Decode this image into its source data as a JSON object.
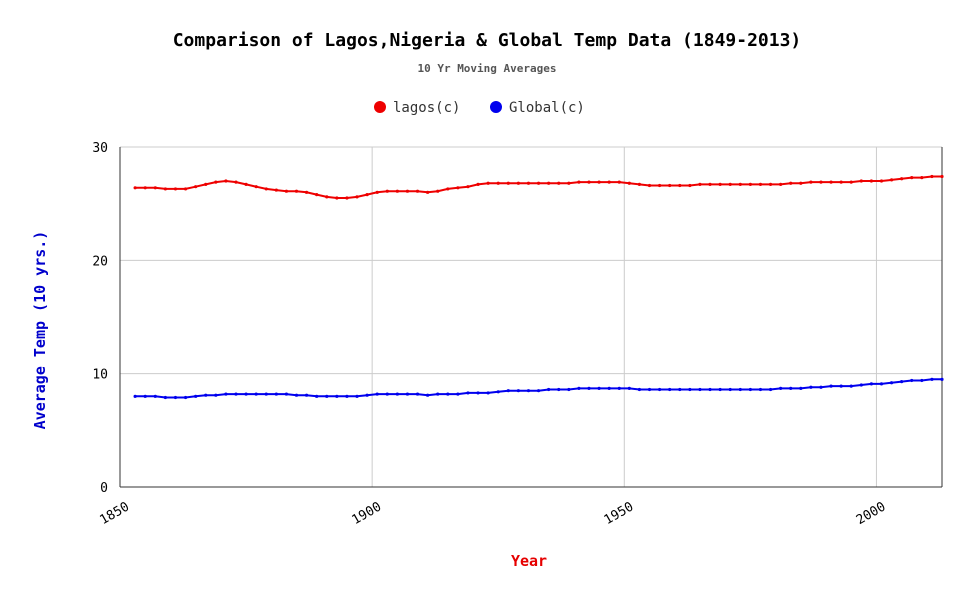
{
  "chart_data": {
    "type": "line",
    "title": "Comparison of Lagos,Nigeria & Global Temp Data (1849-2013)",
    "subtitle": "10 Yr Moving Averages",
    "xlabel": "Year",
    "ylabel": "Average Temp (10 yrs.)",
    "xlim": [
      1850,
      2013
    ],
    "ylim": [
      0,
      30
    ],
    "xticks": [
      "1850",
      "1900",
      "1950",
      "2000"
    ],
    "yticks": [
      "0",
      "10",
      "20",
      "30"
    ],
    "grid": true,
    "legend_position": "top-center",
    "xlabel_color": "#e60000",
    "ylabel_color": "#0000cc",
    "x": [
      1853,
      1855,
      1857,
      1859,
      1861,
      1863,
      1865,
      1867,
      1869,
      1871,
      1873,
      1875,
      1877,
      1879,
      1881,
      1883,
      1885,
      1887,
      1889,
      1891,
      1893,
      1895,
      1897,
      1899,
      1901,
      1903,
      1905,
      1907,
      1909,
      1911,
      1913,
      1915,
      1917,
      1919,
      1921,
      1923,
      1925,
      1927,
      1929,
      1931,
      1933,
      1935,
      1937,
      1939,
      1941,
      1943,
      1945,
      1947,
      1949,
      1951,
      1953,
      1955,
      1957,
      1959,
      1961,
      1963,
      1965,
      1967,
      1969,
      1971,
      1973,
      1975,
      1977,
      1979,
      1981,
      1983,
      1985,
      1987,
      1989,
      1991,
      1993,
      1995,
      1997,
      1999,
      2001,
      2003,
      2005,
      2007,
      2009,
      2011,
      2013
    ],
    "series": [
      {
        "name": "lagos(c)",
        "color": "#ee0000",
        "values": [
          26.4,
          26.4,
          26.4,
          26.3,
          26.3,
          26.3,
          26.5,
          26.7,
          26.9,
          27.0,
          26.9,
          26.7,
          26.5,
          26.3,
          26.2,
          26.1,
          26.1,
          26.0,
          25.8,
          25.6,
          25.5,
          25.5,
          25.6,
          25.8,
          26.0,
          26.1,
          26.1,
          26.1,
          26.1,
          26.0,
          26.1,
          26.3,
          26.4,
          26.5,
          26.7,
          26.8,
          26.8,
          26.8,
          26.8,
          26.8,
          26.8,
          26.8,
          26.8,
          26.8,
          26.9,
          26.9,
          26.9,
          26.9,
          26.9,
          26.8,
          26.7,
          26.6,
          26.6,
          26.6,
          26.6,
          26.6,
          26.7,
          26.7,
          26.7,
          26.7,
          26.7,
          26.7,
          26.7,
          26.7,
          26.7,
          26.8,
          26.8,
          26.9,
          26.9,
          26.9,
          26.9,
          26.9,
          27.0,
          27.0,
          27.0,
          27.1,
          27.2,
          27.3,
          27.3,
          27.4,
          27.4
        ]
      },
      {
        "name": "Global(c)",
        "color": "#0000ee",
        "values": [
          8.0,
          8.0,
          8.0,
          7.9,
          7.9,
          7.9,
          8.0,
          8.1,
          8.1,
          8.2,
          8.2,
          8.2,
          8.2,
          8.2,
          8.2,
          8.2,
          8.1,
          8.1,
          8.0,
          8.0,
          8.0,
          8.0,
          8.0,
          8.1,
          8.2,
          8.2,
          8.2,
          8.2,
          8.2,
          8.1,
          8.2,
          8.2,
          8.2,
          8.3,
          8.3,
          8.3,
          8.4,
          8.5,
          8.5,
          8.5,
          8.5,
          8.6,
          8.6,
          8.6,
          8.7,
          8.7,
          8.7,
          8.7,
          8.7,
          8.7,
          8.6,
          8.6,
          8.6,
          8.6,
          8.6,
          8.6,
          8.6,
          8.6,
          8.6,
          8.6,
          8.6,
          8.6,
          8.6,
          8.6,
          8.7,
          8.7,
          8.7,
          8.8,
          8.8,
          8.9,
          8.9,
          8.9,
          9.0,
          9.1,
          9.1,
          9.2,
          9.3,
          9.4,
          9.4,
          9.5,
          9.5
        ]
      }
    ]
  }
}
